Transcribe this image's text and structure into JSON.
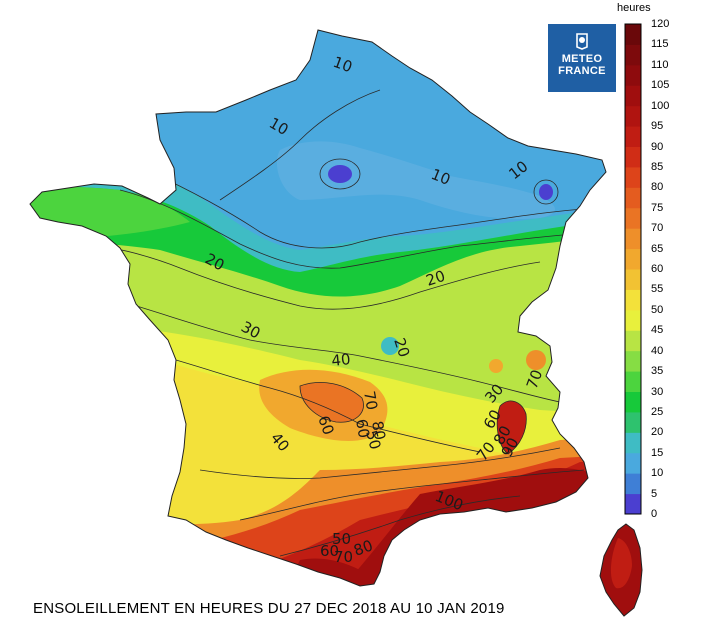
{
  "caption": "ENSOLEILLEMENT EN HEURES DU 27 DEC 2018 AU 10 JAN 2019",
  "logo": {
    "line1": "METEO",
    "line2": "FRANCE"
  },
  "scale": {
    "unit": "heures",
    "min": 0,
    "max": 120,
    "ticks": [
      "120",
      "115",
      "110",
      "105",
      "100",
      "95",
      "90",
      "85",
      "80",
      "75",
      "70",
      "65",
      "60",
      "55",
      "50",
      "45",
      "40",
      "35",
      "30",
      "25",
      "20",
      "15",
      "10",
      "5",
      "0"
    ],
    "colors": [
      "#4b3fd0",
      "#3f7fd6",
      "#4aa9de",
      "#3fbcc4",
      "#2ec26e",
      "#17c93a",
      "#4cd43e",
      "#86dd44",
      "#b8e444",
      "#e8f03c",
      "#f3e13a",
      "#f2c233",
      "#f1a82e",
      "#ee8f2a",
      "#ea7424",
      "#e45c1f",
      "#dd441a",
      "#d02d16",
      "#c01d13",
      "#b01410",
      "#a00e0e",
      "#8e0b0d",
      "#7d0a0c",
      "#6a080a"
    ]
  },
  "contour_labels": [
    {
      "text": "10"
    },
    {
      "text": "10"
    },
    {
      "text": "10"
    },
    {
      "text": "10"
    },
    {
      "text": "20"
    },
    {
      "text": "20"
    },
    {
      "text": "20"
    },
    {
      "text": "30"
    },
    {
      "text": "30"
    },
    {
      "text": "40"
    },
    {
      "text": "40"
    },
    {
      "text": "60"
    },
    {
      "text": "60"
    },
    {
      "text": "60"
    },
    {
      "text": "60"
    },
    {
      "text": "70"
    },
    {
      "text": "70"
    },
    {
      "text": "70"
    },
    {
      "text": "70"
    },
    {
      "text": "80"
    },
    {
      "text": "80"
    },
    {
      "text": "80"
    },
    {
      "text": "90"
    },
    {
      "text": "100"
    },
    {
      "text": "50"
    },
    {
      "text": "50"
    }
  ]
}
